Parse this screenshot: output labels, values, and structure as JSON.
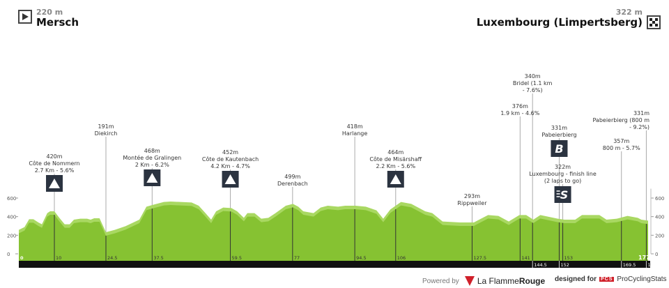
{
  "header": {
    "start": {
      "altitude": "220 m",
      "name": "Mersch",
      "icon": "start-flag-icon"
    },
    "finish": {
      "altitude": "322 m",
      "name": "Luxembourg (Limpertsberg)",
      "icon": "checkered-flag-icon"
    }
  },
  "chart_data": {
    "type": "area",
    "title": "",
    "xlabel": "km",
    "ylabel": "m",
    "xlim": [
      0,
      177
    ],
    "ylim": [
      0,
      600
    ],
    "yticks": [
      0,
      200,
      400,
      600
    ],
    "colors": {
      "fill": "#86c232",
      "fill_light": "#a9d862",
      "bar": "#111111"
    },
    "profile": [
      [
        0,
        220
      ],
      [
        1.6,
        250
      ],
      [
        2.9,
        335
      ],
      [
        4.1,
        335
      ],
      [
        5.5,
        300
      ],
      [
        6.5,
        280
      ],
      [
        8,
        400
      ],
      [
        8.8,
        420
      ],
      [
        10,
        420
      ],
      [
        11.4,
        350
      ],
      [
        12.9,
        280
      ],
      [
        14.3,
        280
      ],
      [
        15.5,
        330
      ],
      [
        17.3,
        340
      ],
      [
        19.2,
        340
      ],
      [
        20.2,
        330
      ],
      [
        21.2,
        345
      ],
      [
        22.7,
        345
      ],
      [
        24.5,
        195
      ],
      [
        27,
        220
      ],
      [
        30,
        260
      ],
      [
        33.9,
        330
      ],
      [
        35.9,
        470
      ],
      [
        37.8,
        490
      ],
      [
        40.8,
        520
      ],
      [
        42.7,
        525
      ],
      [
        48.6,
        515
      ],
      [
        50.6,
        480
      ],
      [
        52.5,
        400
      ],
      [
        54.1,
        330
      ],
      [
        55.5,
        420
      ],
      [
        57.5,
        460
      ],
      [
        59.8,
        455
      ],
      [
        61.4,
        420
      ],
      [
        63.3,
        350
      ],
      [
        64.3,
        400
      ],
      [
        66.3,
        400
      ],
      [
        68.2,
        340
      ],
      [
        70.2,
        350
      ],
      [
        72.2,
        400
      ],
      [
        75.1,
        480
      ],
      [
        77.1,
        500
      ],
      [
        78.6,
        470
      ],
      [
        80,
        420
      ],
      [
        82.9,
        400
      ],
      [
        84.9,
        460
      ],
      [
        86.9,
        480
      ],
      [
        89.8,
        470
      ],
      [
        91.8,
        480
      ],
      [
        94.7,
        480
      ],
      [
        97.6,
        470
      ],
      [
        100.6,
        430
      ],
      [
        102.5,
        340
      ],
      [
        104.5,
        440
      ],
      [
        107.5,
        520
      ],
      [
        110.4,
        500
      ],
      [
        114.3,
        420
      ],
      [
        116.3,
        400
      ],
      [
        119.2,
        310
      ],
      [
        124.1,
        300
      ],
      [
        128,
        300
      ],
      [
        130,
        340
      ],
      [
        132,
        380
      ],
      [
        134.9,
        370
      ],
      [
        137.8,
        310
      ],
      [
        140.8,
        380
      ],
      [
        142.7,
        380
      ],
      [
        144.7,
        330
      ],
      [
        146.7,
        380
      ],
      [
        151.6,
        340
      ],
      [
        153.5,
        330
      ],
      [
        156.5,
        330
      ],
      [
        158.4,
        380
      ],
      [
        163.3,
        380
      ],
      [
        165.3,
        330
      ],
      [
        168.2,
        340
      ],
      [
        171.2,
        370
      ],
      [
        174.1,
        350
      ],
      [
        175.1,
        330
      ],
      [
        177,
        320
      ]
    ],
    "km_marks_top": [
      "0",
      "10",
      "24.5",
      "37.5",
      "59.5",
      "77",
      "94.5",
      "106",
      "127.5",
      "141",
      "153",
      "177"
    ],
    "km_marks_bottom": [
      "144.5",
      "152",
      "169.5",
      "1"
    ],
    "points": [
      {
        "km": 10,
        "alt": "420m",
        "name": "Côte de Nommern",
        "detail": "2.7 Km - 5.6%",
        "icon": "mountain-icon"
      },
      {
        "km": 24.5,
        "alt": "191m",
        "name": "Diekirch",
        "detail": "",
        "icon": ""
      },
      {
        "km": 37.5,
        "alt": "468m",
        "name": "Montée de Gralingen",
        "detail": "2 Km - 6.2%",
        "icon": "mountain-icon"
      },
      {
        "km": 59.5,
        "alt": "452m",
        "name": "Côte de Kautenbach",
        "detail": "4.2 Km - 4.7%",
        "icon": "mountain-icon"
      },
      {
        "km": 77,
        "alt": "499m",
        "name": "Derenbach",
        "detail": "",
        "icon": ""
      },
      {
        "km": 94.5,
        "alt": "418m",
        "name": "Harlange",
        "detail": "",
        "icon": ""
      },
      {
        "km": 106,
        "alt": "464m",
        "name": "Côte de Misärshaff",
        "detail": "2.2 Km - 5.6%",
        "icon": "mountain-icon"
      },
      {
        "km": 127.5,
        "alt": "293m",
        "name": "Rippweiler",
        "detail": "",
        "icon": ""
      },
      {
        "km": 141,
        "alt": "376m",
        "name": "1.9 km - 4.6%",
        "detail": "",
        "icon": ""
      },
      {
        "km": 144.5,
        "alt": "340m",
        "name": "Bridel (1.1 km",
        "detail": "- 7.6%)",
        "icon": ""
      },
      {
        "km": 152,
        "alt": "331m",
        "name": "Pabeierbierg",
        "detail": "",
        "icon": "bonus-b-icon"
      },
      {
        "km": 153,
        "alt": "322m",
        "name": "Luxembourg - finish line",
        "detail": "(2 laps to go)",
        "icon": "sprint-s-icon"
      },
      {
        "km": 169.5,
        "alt": "357m",
        "name": "800 m - 5.7%",
        "detail": "",
        "icon": ""
      },
      {
        "km": 176.5,
        "alt": "331m",
        "name": "Pabeierbierg (800 m",
        "detail": "- 9.2%)",
        "icon": ""
      }
    ]
  },
  "footer": {
    "powered_by": "Powered by",
    "brand_a": "La Flamme",
    "brand_b": "Rouge",
    "designed_for": "designed for",
    "pcs_logo": "PCS",
    "pcs_name": "ProCyclingStats"
  }
}
